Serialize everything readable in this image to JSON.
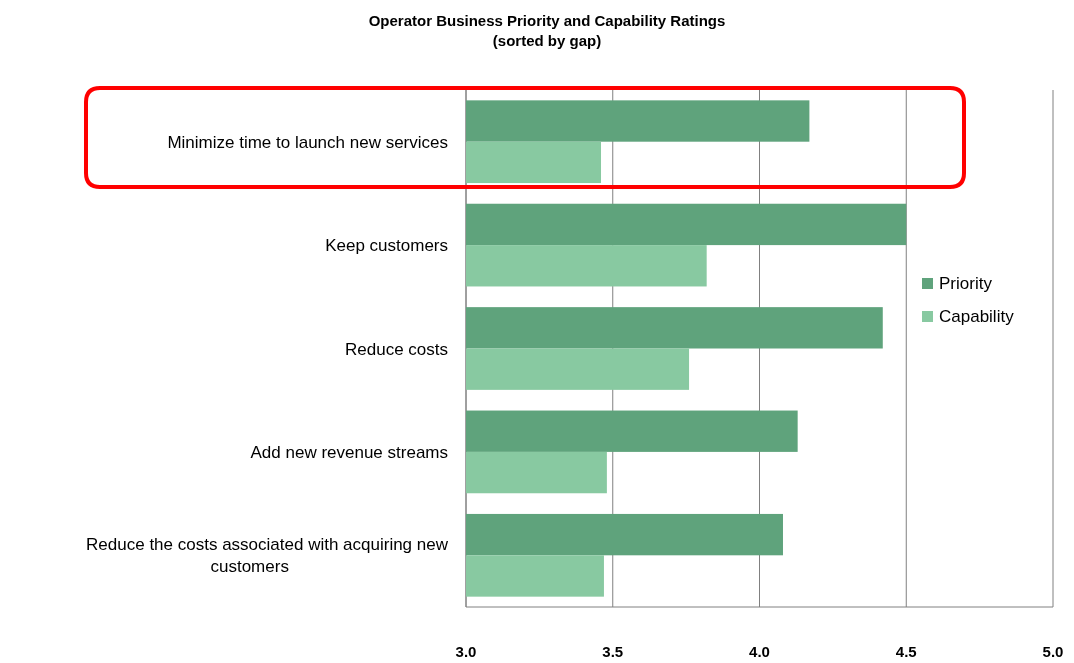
{
  "chart_data": {
    "type": "bar",
    "orientation": "horizontal",
    "title": "Operator Business Priority and Capability Ratings",
    "subtitle": "(sorted by gap)",
    "categories": [
      "Minimize time to launch new services",
      "Keep customers",
      "Reduce costs",
      "Add new revenue streams",
      "Reduce the costs associated with acquiring new customers"
    ],
    "series": [
      {
        "name": "Priority",
        "color": "#5fa37c",
        "values": [
          4.17,
          4.5,
          4.42,
          4.13,
          4.08
        ]
      },
      {
        "name": "Capability",
        "color": "#88c9a1",
        "values": [
          3.46,
          3.82,
          3.76,
          3.48,
          3.47
        ]
      }
    ],
    "xlim": [
      3.0,
      5.0
    ],
    "xticks": [
      {
        "value": 3,
        "label": "3.0"
      },
      {
        "value": 3.5,
        "label": "3.5"
      },
      {
        "value": 4,
        "label": "4.0"
      },
      {
        "value": 4.5,
        "label": "4.5"
      },
      {
        "value": 5,
        "label": "5.0"
      }
    ],
    "grid": "x",
    "legend": "right"
  }
}
